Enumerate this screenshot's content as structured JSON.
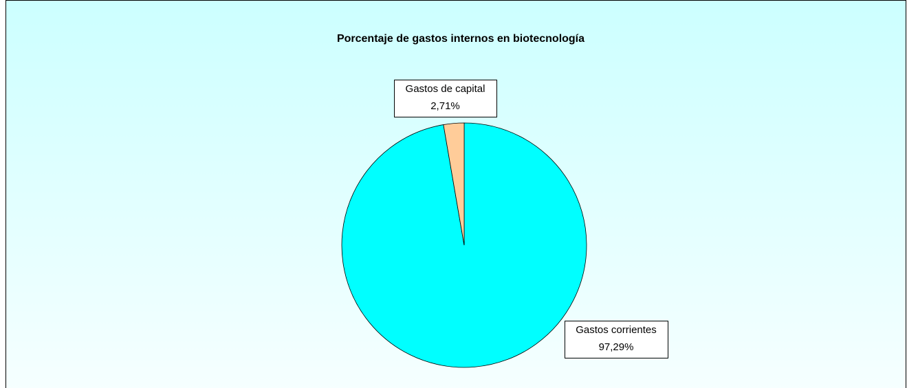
{
  "chart_data": {
    "type": "pie",
    "title": "Porcentaje de gastos internos en biotecnología",
    "categories": [
      "Gastos corrientes",
      "Gastos de capital"
    ],
    "values": [
      97.29,
      2.71
    ],
    "value_labels": [
      "97,29%",
      "2,71%"
    ],
    "colors": [
      "#00ffff",
      "#ffcc99"
    ]
  }
}
